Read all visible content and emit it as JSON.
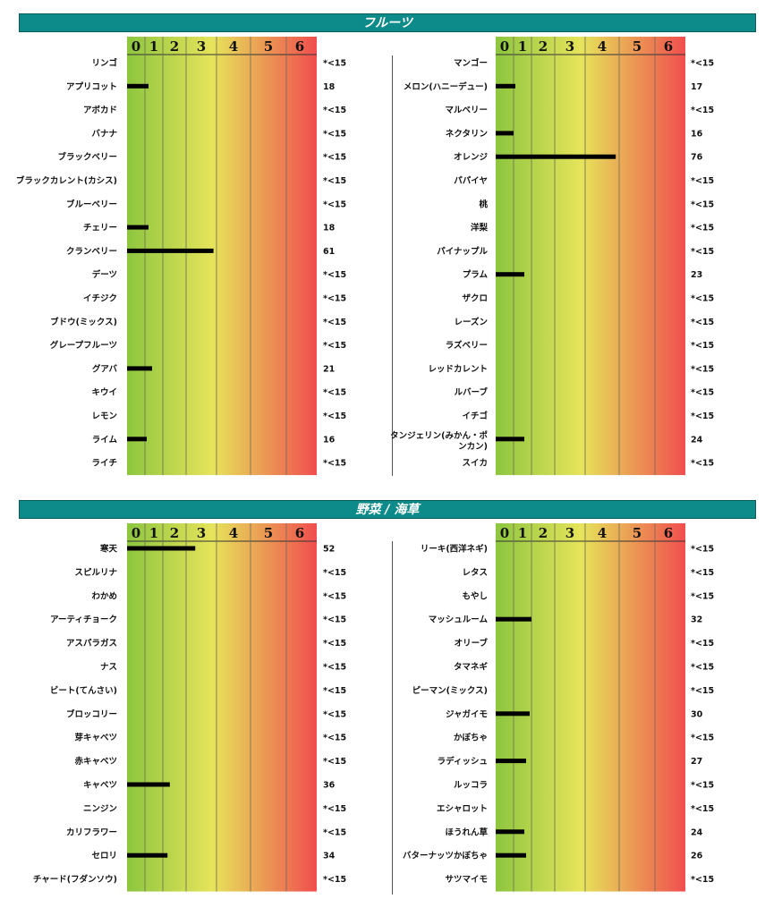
{
  "sections": [
    {
      "title": "フルーツ"
    },
    {
      "title": "野菜 / 海草"
    }
  ],
  "colors": {
    "banner": "#0d8a8a",
    "bar": "#000000",
    "gradient": [
      "#8dc63f",
      "#e6e45a",
      "#f04e4e"
    ]
  },
  "chart_data": [
    {
      "type": "bar",
      "orientation": "horizontal",
      "section": "フルーツ",
      "xticks": [
        "0",
        "1",
        "2",
        "3",
        "4",
        "5",
        "6"
      ],
      "categories": [
        "リンゴ",
        "アプリコット",
        "アボカド",
        "バナナ",
        "ブラックベリー",
        "ブラックカレント(カシス)",
        "ブルーベリー",
        "チェリー",
        "クランベリー",
        "デーツ",
        "イチジク",
        "ブドウ(ミックス)",
        "グレープフルーツ",
        "グアバ",
        "キウイ",
        "レモン",
        "ライム",
        "ライチ"
      ],
      "bar_levels": [
        0,
        1.2,
        0,
        0,
        0,
        0,
        0,
        1.2,
        3.9,
        0,
        0,
        0,
        0,
        1.4,
        0,
        0,
        1.1,
        0
      ],
      "value_labels": [
        "*<15",
        "18",
        "*<15",
        "*<15",
        "*<15",
        "*<15",
        "*<15",
        "18",
        "61",
        "*<15",
        "*<15",
        "*<15",
        "*<15",
        "21",
        "*<15",
        "*<15",
        "16",
        "*<15"
      ]
    },
    {
      "type": "bar",
      "orientation": "horizontal",
      "section": "フルーツ",
      "xticks": [
        "0",
        "1",
        "2",
        "3",
        "4",
        "5",
        "6"
      ],
      "categories": [
        "マンゴー",
        "メロン(ハニーデュー)",
        "マルベリー",
        "ネクタリン",
        "オレンジ",
        "パパイヤ",
        "桃",
        "洋梨",
        "パイナップル",
        "プラム",
        "ザクロ",
        "レーズン",
        "ラズベリー",
        "レッドカレント",
        "ルバーブ",
        "イチゴ",
        "タンジェリン(みかん・ポンカン)",
        "スイカ"
      ],
      "bar_levels": [
        0,
        1.1,
        0,
        1.0,
        4.9,
        0,
        0,
        0,
        0,
        1.6,
        0,
        0,
        0,
        0,
        0,
        0,
        1.6,
        0
      ],
      "value_labels": [
        "*<15",
        "17",
        "*<15",
        "16",
        "76",
        "*<15",
        "*<15",
        "*<15",
        "*<15",
        "23",
        "*<15",
        "*<15",
        "*<15",
        "*<15",
        "*<15",
        "*<15",
        "24",
        "*<15"
      ]
    },
    {
      "type": "bar",
      "orientation": "horizontal",
      "section": "野菜 / 海草",
      "xticks": [
        "0",
        "1",
        "2",
        "3",
        "4",
        "5",
        "6"
      ],
      "categories": [
        "寒天",
        "スピルリナ",
        "わかめ",
        "アーティチョーク",
        "アスパラガス",
        "ナス",
        "ビート(てんさい)",
        "ブロッコリー",
        "芽キャベツ",
        "赤キャベツ",
        "キャベツ",
        "ニンジン",
        "カリフラワー",
        "セロリ",
        "チャード(フダンソウ)"
      ],
      "bar_levels": [
        3.3,
        0,
        0,
        0,
        0,
        0,
        0,
        0,
        0,
        0,
        2.3,
        0,
        0,
        2.2,
        0
      ],
      "value_labels": [
        "52",
        "*<15",
        "*<15",
        "*<15",
        "*<15",
        "*<15",
        "*<15",
        "*<15",
        "*<15",
        "*<15",
        "36",
        "*<15",
        "*<15",
        "34",
        "*<15"
      ]
    },
    {
      "type": "bar",
      "orientation": "horizontal",
      "section": "野菜 / 海草",
      "xticks": [
        "0",
        "1",
        "2",
        "3",
        "4",
        "5",
        "6"
      ],
      "categories": [
        "リーキ(西洋ネギ)",
        "レタス",
        "もやし",
        "マッシュルーム",
        "オリーブ",
        "タマネギ",
        "ピーマン(ミックス)",
        "ジャガイモ",
        "かぼちゃ",
        "ラディッシュ",
        "ルッコラ",
        "エシャロット",
        "ほうれん草",
        "バターナッツかぼちゃ",
        "サツマイモ"
      ],
      "bar_levels": [
        0,
        0,
        0,
        2.0,
        0,
        0,
        0,
        1.9,
        0,
        1.7,
        0,
        0,
        1.6,
        1.7,
        0
      ],
      "value_labels": [
        "*<15",
        "*<15",
        "*<15",
        "32",
        "*<15",
        "*<15",
        "*<15",
        "30",
        "*<15",
        "27",
        "*<15",
        "*<15",
        "24",
        "26",
        "*<15"
      ]
    }
  ]
}
